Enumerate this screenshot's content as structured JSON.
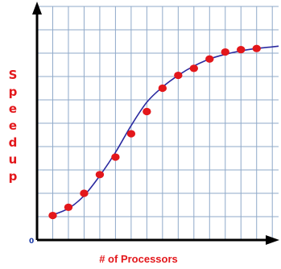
{
  "chart_data": {
    "type": "scatter",
    "title": "",
    "xlabel": "# of Processors",
    "ylabel": "Speedup",
    "origin_label": "0",
    "xlim": [
      0,
      15.4
    ],
    "ylim": [
      0,
      10
    ],
    "grid": true,
    "grid_columns": 15,
    "grid_rows": 10,
    "legend": "none",
    "series": [
      {
        "points": [
          {
            "x": 1.0,
            "y": 1.05
          },
          {
            "x": 2.0,
            "y": 1.4
          },
          {
            "x": 3.0,
            "y": 2.0
          },
          {
            "x": 4.0,
            "y": 2.8
          },
          {
            "x": 5.0,
            "y": 3.55
          },
          {
            "x": 6.0,
            "y": 4.55
          },
          {
            "x": 7.0,
            "y": 5.5
          },
          {
            "x": 8.0,
            "y": 6.5
          },
          {
            "x": 9.0,
            "y": 7.05
          },
          {
            "x": 10.0,
            "y": 7.35
          },
          {
            "x": 11.0,
            "y": 7.75
          },
          {
            "x": 12.0,
            "y": 8.05
          },
          {
            "x": 13.0,
            "y": 8.15
          },
          {
            "x": 14.0,
            "y": 8.2
          }
        ]
      }
    ],
    "trend_curve": [
      [
        0.9,
        1.05
      ],
      [
        2.0,
        1.35
      ],
      [
        3.0,
        1.9
      ],
      [
        4.0,
        2.75
      ],
      [
        5.0,
        3.75
      ],
      [
        6.0,
        4.9
      ],
      [
        7.0,
        5.9
      ],
      [
        8.0,
        6.55
      ],
      [
        9.0,
        7.05
      ],
      [
        10.0,
        7.45
      ],
      [
        11.0,
        7.75
      ],
      [
        12.0,
        7.95
      ],
      [
        13.0,
        8.1
      ],
      [
        14.0,
        8.2
      ],
      [
        15.0,
        8.27
      ],
      [
        15.4,
        8.3
      ]
    ],
    "colors": {
      "grid": "#8fa9c9",
      "axis": "#000000",
      "curve": "#2a2aa0",
      "points": "#e3171b",
      "labels": "#e3171b",
      "origin": "#1a3aa8"
    }
  }
}
